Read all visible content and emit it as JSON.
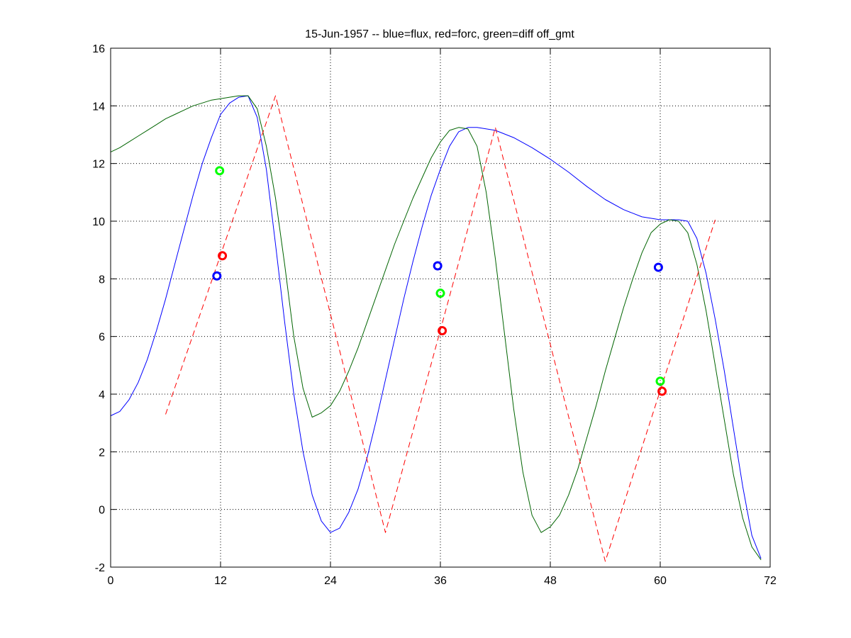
{
  "chart_data": {
    "type": "line",
    "title": "15-Jun-1957 -- blue=flux, red=forc, green=diff off_gmt",
    "xlabel": "",
    "ylabel": "",
    "xlim": [
      0,
      72
    ],
    "ylim": [
      -2,
      16
    ],
    "xticks": [
      0,
      12,
      24,
      36,
      48,
      60,
      72
    ],
    "yticks": [
      -2,
      0,
      2,
      4,
      6,
      8,
      10,
      12,
      14,
      16
    ],
    "grid": true,
    "series": [
      {
        "color": "#0000ff",
        "style": "solid",
        "points": [
          [
            0,
            3.25
          ],
          [
            1,
            3.4
          ],
          [
            2,
            3.8
          ],
          [
            3,
            4.4
          ],
          [
            4,
            5.2
          ],
          [
            5,
            6.2
          ],
          [
            6,
            7.3
          ],
          [
            7,
            8.5
          ],
          [
            8,
            9.7
          ],
          [
            9,
            10.9
          ],
          [
            10,
            12.0
          ],
          [
            11,
            12.9
          ],
          [
            12,
            13.7
          ],
          [
            13,
            14.1
          ],
          [
            14,
            14.3
          ],
          [
            15,
            14.35
          ],
          [
            16,
            13.6
          ],
          [
            17,
            11.8
          ],
          [
            18,
            9.2
          ],
          [
            19,
            6.5
          ],
          [
            20,
            4.0
          ],
          [
            21,
            2.0
          ],
          [
            22,
            0.5
          ],
          [
            23,
            -0.4
          ],
          [
            24,
            -0.8
          ],
          [
            25,
            -0.65
          ],
          [
            26,
            -0.1
          ],
          [
            27,
            0.7
          ],
          [
            28,
            1.8
          ],
          [
            29,
            3.1
          ],
          [
            30,
            4.5
          ],
          [
            31,
            5.9
          ],
          [
            32,
            7.3
          ],
          [
            33,
            8.6
          ],
          [
            34,
            9.8
          ],
          [
            35,
            10.9
          ],
          [
            36,
            11.8
          ],
          [
            37,
            12.6
          ],
          [
            38,
            13.1
          ],
          [
            39,
            13.25
          ],
          [
            40,
            13.25
          ],
          [
            42,
            13.15
          ],
          [
            44,
            12.9
          ],
          [
            46,
            12.55
          ],
          [
            48,
            12.15
          ],
          [
            50,
            11.7
          ],
          [
            52,
            11.2
          ],
          [
            54,
            10.75
          ],
          [
            56,
            10.4
          ],
          [
            58,
            10.15
          ],
          [
            60,
            10.05
          ],
          [
            62,
            10.05
          ],
          [
            63,
            10.0
          ],
          [
            64,
            9.4
          ],
          [
            65,
            8.2
          ],
          [
            66,
            6.6
          ],
          [
            67,
            4.8
          ],
          [
            68,
            2.8
          ],
          [
            69,
            0.8
          ],
          [
            70,
            -0.9
          ],
          [
            71,
            -1.7
          ]
        ]
      },
      {
        "color": "#006400",
        "style": "solid",
        "points": [
          [
            0,
            12.4
          ],
          [
            1,
            12.55
          ],
          [
            2,
            12.75
          ],
          [
            3,
            12.95
          ],
          [
            4,
            13.15
          ],
          [
            5,
            13.35
          ],
          [
            6,
            13.55
          ],
          [
            7,
            13.7
          ],
          [
            8,
            13.85
          ],
          [
            9,
            14.0
          ],
          [
            10,
            14.1
          ],
          [
            11,
            14.2
          ],
          [
            12,
            14.25
          ],
          [
            13,
            14.3
          ],
          [
            14,
            14.35
          ],
          [
            15,
            14.35
          ],
          [
            16,
            13.9
          ],
          [
            17,
            12.6
          ],
          [
            18,
            10.8
          ],
          [
            19,
            8.5
          ],
          [
            20,
            6.0
          ],
          [
            21,
            4.2
          ],
          [
            22,
            3.2
          ],
          [
            23,
            3.35
          ],
          [
            24,
            3.6
          ],
          [
            25,
            4.1
          ],
          [
            26,
            4.8
          ],
          [
            27,
            5.6
          ],
          [
            28,
            6.5
          ],
          [
            29,
            7.4
          ],
          [
            30,
            8.3
          ],
          [
            31,
            9.2
          ],
          [
            32,
            10.0
          ],
          [
            33,
            10.8
          ],
          [
            34,
            11.5
          ],
          [
            35,
            12.2
          ],
          [
            36,
            12.75
          ],
          [
            37,
            13.15
          ],
          [
            38,
            13.25
          ],
          [
            39,
            13.2
          ],
          [
            40,
            12.6
          ],
          [
            41,
            11.0
          ],
          [
            42,
            8.7
          ],
          [
            43,
            6.1
          ],
          [
            44,
            3.5
          ],
          [
            45,
            1.3
          ],
          [
            46,
            -0.2
          ],
          [
            47,
            -0.8
          ],
          [
            48,
            -0.6
          ],
          [
            49,
            -0.2
          ],
          [
            50,
            0.5
          ],
          [
            51,
            1.4
          ],
          [
            52,
            2.5
          ],
          [
            53,
            3.6
          ],
          [
            54,
            4.8
          ],
          [
            55,
            5.9
          ],
          [
            56,
            7.0
          ],
          [
            57,
            8.0
          ],
          [
            58,
            8.9
          ],
          [
            59,
            9.6
          ],
          [
            60,
            9.9
          ],
          [
            61,
            10.05
          ],
          [
            62,
            10.0
          ],
          [
            63,
            9.6
          ],
          [
            64,
            8.5
          ],
          [
            65,
            6.9
          ],
          [
            66,
            5.0
          ],
          [
            67,
            3.1
          ],
          [
            68,
            1.2
          ],
          [
            69,
            -0.3
          ],
          [
            70,
            -1.3
          ],
          [
            71,
            -1.75
          ]
        ]
      },
      {
        "color": "#ff0000",
        "style": "dashed",
        "points": [
          [
            6,
            3.3
          ],
          [
            18,
            14.35
          ],
          [
            30,
            -0.8
          ],
          [
            42,
            13.25
          ],
          [
            54,
            -1.8
          ],
          [
            66,
            10.05
          ]
        ]
      }
    ],
    "markers": [
      {
        "color": "#0000ff",
        "x": 11.6,
        "y": 8.1
      },
      {
        "color": "#ff0000",
        "x": 12.2,
        "y": 8.8
      },
      {
        "color": "#00ff00",
        "x": 11.9,
        "y": 11.75
      },
      {
        "color": "#0000ff",
        "x": 35.7,
        "y": 8.45
      },
      {
        "color": "#00ff00",
        "x": 36.0,
        "y": 7.5
      },
      {
        "color": "#ff0000",
        "x": 36.2,
        "y": 6.2
      },
      {
        "color": "#0000ff",
        "x": 59.8,
        "y": 8.4
      },
      {
        "color": "#00ff00",
        "x": 60.0,
        "y": 4.45
      },
      {
        "color": "#ff0000",
        "x": 60.2,
        "y": 4.1
      }
    ]
  }
}
